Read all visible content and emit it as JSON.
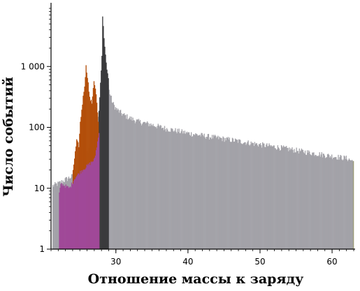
{
  "chart_data": {
    "type": "bar",
    "xlabel": "Отношение массы к заряду",
    "ylabel": "Число событий",
    "yscale": "log",
    "xlim": [
      21,
      63
    ],
    "ylim": [
      1,
      10000
    ],
    "x_ticks": [
      {
        "value": 30,
        "label": "30"
      },
      {
        "value": 40,
        "label": "40"
      },
      {
        "value": 50,
        "label": "50"
      },
      {
        "value": 60,
        "label": "60"
      }
    ],
    "y_ticks": [
      {
        "value": 1,
        "label": "1"
      },
      {
        "value": 10,
        "label": "10"
      },
      {
        "value": 100,
        "label": "100"
      },
      {
        "value": 1000,
        "label": "1 000"
      }
    ],
    "grid": false,
    "colors": {
      "background": "#a3a2a8",
      "dark_peak": "#3a3a3c",
      "orange_peak": "#b34f0a",
      "purple_peak": "#a04898",
      "olive_peak": "#9a9a78"
    },
    "series": [
      {
        "color": "#a3a2a8",
        "points": [
          [
            21.2,
            11
          ],
          [
            22.0,
            12
          ],
          [
            23.0,
            14
          ],
          [
            24.0,
            16
          ],
          [
            25.0,
            22
          ],
          [
            26.0,
            40
          ],
          [
            27.0,
            70
          ],
          [
            28.0,
            400
          ],
          [
            28.5,
            1200
          ],
          [
            29.0,
            400
          ],
          [
            29.5,
            250
          ],
          [
            30.0,
            200
          ],
          [
            31.0,
            160
          ],
          [
            32.0,
            140
          ],
          [
            33.0,
            125
          ],
          [
            35.0,
            110
          ],
          [
            37.0,
            95
          ],
          [
            40.0,
            80
          ],
          [
            43.0,
            70
          ],
          [
            46.0,
            62
          ],
          [
            50.0,
            52
          ],
          [
            53.0,
            46
          ],
          [
            56.0,
            40
          ],
          [
            59.0,
            35
          ],
          [
            62.0,
            31
          ],
          [
            62.8,
            28
          ]
        ]
      },
      {
        "color": "#3a3a3c",
        "points": [
          [
            27.4,
            60
          ],
          [
            27.7,
            300
          ],
          [
            28.0,
            1500
          ],
          [
            28.1,
            7000
          ],
          [
            28.3,
            3000
          ],
          [
            28.5,
            1500
          ],
          [
            28.7,
            900
          ],
          [
            28.9,
            600
          ]
        ]
      },
      {
        "color": "#b34f0a",
        "points": [
          [
            24.0,
            20
          ],
          [
            24.5,
            60
          ],
          [
            24.8,
            50
          ],
          [
            25.0,
            120
          ],
          [
            25.3,
            250
          ],
          [
            25.6,
            500
          ],
          [
            25.8,
            1000
          ],
          [
            26.0,
            700
          ],
          [
            26.3,
            300
          ],
          [
            26.6,
            250
          ],
          [
            26.9,
            600
          ],
          [
            27.2,
            350
          ],
          [
            27.5,
            120
          ]
        ]
      },
      {
        "color": "#a04898",
        "points": [
          [
            22.1,
            8
          ],
          [
            22.3,
            12
          ],
          [
            23.5,
            10
          ],
          [
            24.3,
            15
          ],
          [
            25.3,
            20
          ],
          [
            26.3,
            25
          ],
          [
            27.0,
            30
          ],
          [
            27.6,
            80
          ]
        ]
      },
      {
        "color": "#9a9a78",
        "points": [
          [
            62.9,
            28
          ]
        ]
      }
    ]
  }
}
